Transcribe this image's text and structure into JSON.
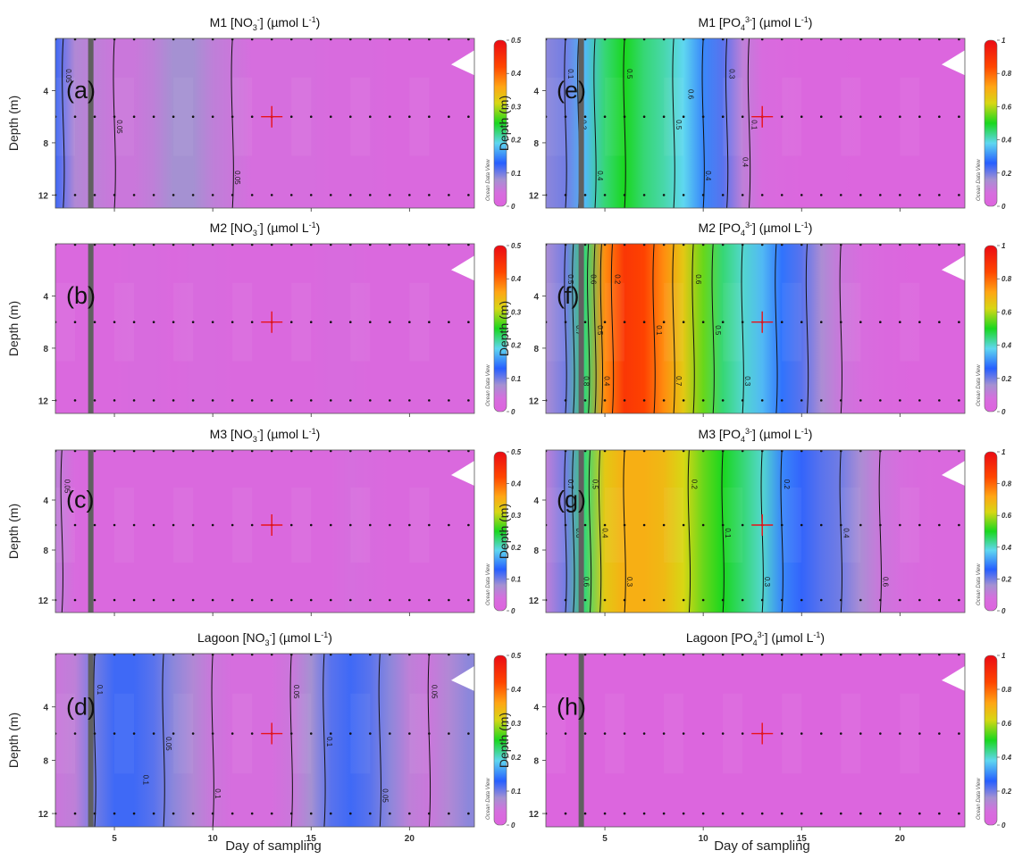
{
  "figure": {
    "xlabel": "Day of sampling",
    "ylabel": "Depth (m)",
    "colorbar_watermark": "Ocean Data View"
  },
  "chart_data": [
    {
      "type": "heatmap",
      "panel_letter": "(a)",
      "title_prefix": "M1 [NO",
      "title_sub": "3",
      "title_sup": "-",
      "title_unit": "] (µmol L",
      "title_unit_sup": "-1",
      "title_end": ")",
      "xlim": [
        2,
        23.3
      ],
      "ylim": [
        0,
        13
      ],
      "x_ticks": [
        5,
        10,
        15,
        20
      ],
      "y_ticks": [
        4,
        8,
        12
      ],
      "x_tick_labels_shown": false,
      "colorbar": {
        "min": 0,
        "max": 0.5,
        "ticks": [
          0,
          0.1,
          0.2,
          0.3,
          0.4,
          0.5
        ]
      },
      "sample_depths": [
        0,
        6,
        12
      ],
      "sample_days": [
        2,
        3,
        4,
        5,
        6,
        7,
        8,
        9,
        10,
        11,
        12,
        13,
        14,
        15,
        16,
        17,
        18,
        19,
        20,
        21,
        22,
        23
      ],
      "marker": {
        "day": 13,
        "depth": 6
      },
      "vertical_bar_day": 3.8,
      "profile_days": [
        2,
        3,
        4,
        5,
        6,
        7,
        8,
        9,
        10,
        11,
        12,
        13,
        14,
        15,
        16,
        17,
        18,
        19,
        20,
        21,
        22,
        23
      ],
      "profile_values": [
        0.12,
        0.07,
        0.06,
        0.05,
        0.05,
        0.06,
        0.08,
        0.08,
        0.06,
        0.05,
        0.04,
        0.04,
        0.04,
        0.04,
        0.03,
        0.03,
        0.03,
        0.02,
        0.02,
        0.02,
        0.02,
        0.02
      ],
      "contour_labels": [
        "0.05",
        "0.05",
        "0.05"
      ]
    },
    {
      "type": "heatmap",
      "panel_letter": "(b)",
      "title_prefix": "M2 [NO",
      "title_sub": "3",
      "title_sup": "-",
      "title_unit": "] (µmol L",
      "title_unit_sup": "-1",
      "title_end": ")",
      "xlim": [
        2,
        23.3
      ],
      "ylim": [
        0,
        13
      ],
      "x_ticks": [
        5,
        10,
        15,
        20
      ],
      "y_ticks": [
        4,
        8,
        12
      ],
      "x_tick_labels_shown": false,
      "colorbar": {
        "min": 0,
        "max": 0.5,
        "ticks": [
          0,
          0.1,
          0.2,
          0.3,
          0.4,
          0.5
        ]
      },
      "sample_depths": [
        0,
        6,
        12
      ],
      "sample_days": [
        2,
        3,
        4,
        5,
        6,
        7,
        8,
        9,
        10,
        11,
        12,
        13,
        14,
        15,
        16,
        17,
        18,
        19,
        20,
        21,
        22,
        23
      ],
      "marker": {
        "day": 13,
        "depth": 6
      },
      "vertical_bar_day": 3.8,
      "profile_days": [
        2,
        3,
        4,
        5,
        6,
        7,
        8,
        9,
        10,
        11,
        12,
        13,
        14,
        15,
        16,
        17,
        18,
        19,
        20,
        21,
        22,
        23
      ],
      "profile_values": [
        0.02,
        0.02,
        0.02,
        0.02,
        0.03,
        0.03,
        0.02,
        0.03,
        0.03,
        0.02,
        0.02,
        0.02,
        0.02,
        0.02,
        0.03,
        0.03,
        0.02,
        0.02,
        0.02,
        0.02,
        0.02,
        0.02
      ],
      "contour_labels": []
    },
    {
      "type": "heatmap",
      "panel_letter": "(c)",
      "title_prefix": "M3 [NO",
      "title_sub": "3",
      "title_sup": "-",
      "title_unit": "] (µmol L",
      "title_unit_sup": "-1",
      "title_end": ")",
      "xlim": [
        2,
        23.3
      ],
      "ylim": [
        0,
        13
      ],
      "x_ticks": [
        5,
        10,
        15,
        20
      ],
      "y_ticks": [
        4,
        8,
        12
      ],
      "x_tick_labels_shown": false,
      "colorbar": {
        "min": 0,
        "max": 0.5,
        "ticks": [
          0,
          0.1,
          0.2,
          0.3,
          0.4,
          0.5
        ]
      },
      "sample_depths": [
        0,
        6,
        12
      ],
      "sample_days": [
        2,
        3,
        4,
        5,
        6,
        7,
        8,
        9,
        10,
        11,
        12,
        13,
        14,
        15,
        16,
        17,
        18,
        19,
        20,
        21,
        22,
        23
      ],
      "marker": {
        "day": 13,
        "depth": 6
      },
      "vertical_bar_day": 3.8,
      "profile_days": [
        2,
        3,
        4,
        5,
        6,
        7,
        8,
        9,
        10,
        11,
        12,
        13,
        14,
        15,
        16,
        17,
        18,
        19,
        20,
        21,
        22,
        23
      ],
      "profile_values": [
        0.06,
        0.03,
        0.02,
        0.02,
        0.02,
        0.02,
        0.02,
        0.02,
        0.02,
        0.02,
        0.02,
        0.02,
        0.02,
        0.02,
        0.02,
        0.04,
        0.03,
        0.02,
        0.02,
        0.02,
        0.02,
        0.02
      ],
      "contour_labels": [
        "0.05"
      ]
    },
    {
      "type": "heatmap",
      "panel_letter": "(d)",
      "title_prefix": "Lagoon [NO",
      "title_sub": "3",
      "title_sup": "-",
      "title_unit": "] (µmol L",
      "title_unit_sup": "-1",
      "title_end": ")",
      "xlim": [
        2,
        23.3
      ],
      "ylim": [
        0,
        13
      ],
      "x_ticks": [
        5,
        10,
        15,
        20
      ],
      "y_ticks": [
        4,
        8,
        12
      ],
      "x_tick_labels_shown": true,
      "colorbar": {
        "min": 0,
        "max": 0.5,
        "ticks": [
          0,
          0.1,
          0.2,
          0.3,
          0.4,
          0.5
        ]
      },
      "sample_depths": [
        0,
        6,
        12
      ],
      "sample_days": [
        2,
        3,
        4,
        5,
        6,
        7,
        8,
        9,
        10,
        11,
        12,
        13,
        14,
        15,
        16,
        17,
        18,
        19,
        20,
        21,
        22,
        23
      ],
      "marker": {
        "day": 13,
        "depth": 6
      },
      "vertical_bar_day": 3.8,
      "profile_days": [
        2,
        3,
        4,
        5,
        6,
        7,
        8,
        9,
        10,
        11,
        12,
        13,
        14,
        15,
        16,
        17,
        18,
        19,
        20,
        21,
        22,
        23
      ],
      "profile_values": [
        0.05,
        0.06,
        0.1,
        0.12,
        0.12,
        0.11,
        0.09,
        0.07,
        0.05,
        0.04,
        0.04,
        0.04,
        0.05,
        0.08,
        0.11,
        0.12,
        0.11,
        0.09,
        0.06,
        0.05,
        0.07,
        0.09
      ],
      "contour_labels": [
        "0.1",
        "0.05",
        "0.1",
        "0.05",
        "0.1",
        "0.05",
        "0.05",
        "0.1"
      ]
    },
    {
      "type": "heatmap",
      "panel_letter": "(e)",
      "title_prefix": "M1 [PO",
      "title_sub": "4",
      "title_sup": "3-",
      "title_unit": "] (µmol L",
      "title_unit_sup": "-1",
      "title_end": ")",
      "xlim": [
        2,
        23.3
      ],
      "ylim": [
        0,
        13
      ],
      "x_ticks": [
        5,
        10,
        15,
        20
      ],
      "y_ticks": [
        4,
        8,
        12
      ],
      "x_tick_labels_shown": false,
      "colorbar": {
        "min": 0,
        "max": 1,
        "ticks": [
          0,
          0.2,
          0.4,
          0.6,
          0.8,
          1
        ]
      },
      "sample_depths": [
        0,
        6,
        12
      ],
      "sample_days": [
        2,
        3,
        4,
        5,
        6,
        7,
        8,
        9,
        10,
        11,
        12,
        13,
        14,
        15,
        16,
        17,
        18,
        19,
        20,
        21,
        22,
        23
      ],
      "marker": {
        "day": 13,
        "depth": 6
      },
      "vertical_bar_day": 3.8,
      "profile_days": [
        2,
        3,
        4,
        5,
        6,
        7,
        8,
        9,
        10,
        11,
        12,
        13,
        14,
        15,
        16,
        17,
        18,
        19,
        20,
        21,
        22,
        23
      ],
      "profile_values": [
        0.18,
        0.2,
        0.35,
        0.45,
        0.5,
        0.45,
        0.42,
        0.38,
        0.3,
        0.22,
        0.12,
        0.06,
        0.04,
        0.03,
        0.03,
        0.03,
        0.02,
        0.02,
        0.02,
        0.02,
        0.02,
        0.02
      ],
      "contour_labels": [
        "0.1",
        "0.3",
        "0.4",
        "0.5",
        "0.5",
        "0.4",
        "0.3",
        "0.1",
        "0.6",
        "0.4"
      ]
    },
    {
      "type": "heatmap",
      "panel_letter": "(f)",
      "title_prefix": "M2 [PO",
      "title_sub": "4",
      "title_sup": "3-",
      "title_unit": "] (µmol L",
      "title_unit_sup": "-1",
      "title_end": ")",
      "xlim": [
        2,
        23.3
      ],
      "ylim": [
        0,
        13
      ],
      "x_ticks": [
        5,
        10,
        15,
        20
      ],
      "y_ticks": [
        4,
        8,
        12
      ],
      "x_tick_labels_shown": false,
      "colorbar": {
        "min": 0,
        "max": 1,
        "ticks": [
          0,
          0.2,
          0.4,
          0.6,
          0.8,
          1
        ]
      },
      "sample_depths": [
        0,
        6,
        12
      ],
      "sample_days": [
        2,
        3,
        4,
        5,
        6,
        7,
        8,
        9,
        10,
        11,
        12,
        13,
        14,
        15,
        16,
        17,
        18,
        19,
        20,
        21,
        22,
        23
      ],
      "marker": {
        "day": 13,
        "depth": 6
      },
      "vertical_bar_day": 3.8,
      "profile_days": [
        2,
        3,
        4,
        5,
        6,
        7,
        8,
        9,
        10,
        11,
        12,
        13,
        14,
        15,
        16,
        17,
        18,
        19,
        20,
        21,
        22,
        23
      ],
      "profile_values": [
        0.15,
        0.2,
        0.45,
        0.75,
        0.88,
        0.85,
        0.75,
        0.65,
        0.55,
        0.45,
        0.4,
        0.35,
        0.28,
        0.22,
        0.15,
        0.1,
        0.07,
        0.04,
        0.03,
        0.02,
        0.02,
        0.02
      ],
      "contour_labels": [
        "0.5",
        "0.7",
        "0.8",
        "0.6",
        "0.5",
        "0.4",
        "0.2",
        "0.1",
        "0.7",
        "0.6",
        "0.5",
        "0.3"
      ]
    },
    {
      "type": "heatmap",
      "panel_letter": "(g)",
      "title_prefix": "M3 [PO",
      "title_sub": "4",
      "title_sup": "3-",
      "title_unit": "] (µmol L",
      "title_unit_sup": "-1",
      "title_end": ")",
      "xlim": [
        2,
        23.3
      ],
      "ylim": [
        0,
        13
      ],
      "x_ticks": [
        5,
        10,
        15,
        20
      ],
      "y_ticks": [
        4,
        8,
        12
      ],
      "x_tick_labels_shown": false,
      "colorbar": {
        "min": 0,
        "max": 1,
        "ticks": [
          0,
          0.2,
          0.4,
          0.6,
          0.8,
          1
        ]
      },
      "sample_depths": [
        0,
        6,
        12
      ],
      "sample_days": [
        2,
        3,
        4,
        5,
        6,
        7,
        8,
        9,
        10,
        11,
        12,
        13,
        14,
        15,
        16,
        17,
        18,
        19,
        20,
        21,
        22,
        23
      ],
      "marker": {
        "day": 13,
        "depth": 6
      },
      "vertical_bar_day": 3.8,
      "profile_days": [
        2,
        3,
        4,
        5,
        6,
        7,
        8,
        9,
        10,
        11,
        12,
        13,
        14,
        15,
        16,
        17,
        18,
        19,
        20,
        21,
        22,
        23
      ],
      "profile_values": [
        0.12,
        0.2,
        0.45,
        0.65,
        0.7,
        0.7,
        0.68,
        0.62,
        0.55,
        0.5,
        0.45,
        0.4,
        0.3,
        0.25,
        0.22,
        0.2,
        0.15,
        0.1,
        0.08,
        0.05,
        0.04,
        0.04
      ],
      "contour_labels": [
        "0.7",
        "0.6",
        "0.6",
        "0.5",
        "0.4",
        "0.3",
        "0.2",
        "0.1",
        "0.3",
        "0.2",
        "0.4",
        "0.6"
      ]
    },
    {
      "type": "heatmap",
      "panel_letter": "(h)",
      "title_prefix": "Lagoon [PO",
      "title_sub": "4",
      "title_sup": "3-",
      "title_unit": "] (µmol L",
      "title_unit_sup": "-1",
      "title_end": ")",
      "xlim": [
        2,
        23.3
      ],
      "ylim": [
        0,
        13
      ],
      "x_ticks": [
        5,
        10,
        15,
        20
      ],
      "y_ticks": [
        4,
        8,
        12
      ],
      "x_tick_labels_shown": true,
      "colorbar": {
        "min": 0,
        "max": 1,
        "ticks": [
          0,
          0.2,
          0.4,
          0.6,
          0.8,
          1
        ]
      },
      "sample_depths": [
        0,
        6,
        12
      ],
      "sample_days": [
        2,
        3,
        4,
        5,
        6,
        7,
        8,
        9,
        10,
        11,
        12,
        13,
        14,
        15,
        16,
        17,
        18,
        19,
        20,
        21,
        22,
        23
      ],
      "marker": {
        "day": 13,
        "depth": 6
      },
      "vertical_bar_day": 3.8,
      "profile_days": [
        2,
        3,
        4,
        5,
        6,
        7,
        8,
        9,
        10,
        11,
        12,
        13,
        14,
        15,
        16,
        17,
        18,
        19,
        20,
        21,
        22,
        23
      ],
      "profile_values": [
        0.02,
        0.02,
        0.02,
        0.02,
        0.02,
        0.02,
        0.02,
        0.02,
        0.02,
        0.02,
        0.02,
        0.02,
        0.02,
        0.02,
        0.02,
        0.02,
        0.02,
        0.02,
        0.02,
        0.02,
        0.02,
        0.02
      ],
      "contour_labels": []
    }
  ]
}
